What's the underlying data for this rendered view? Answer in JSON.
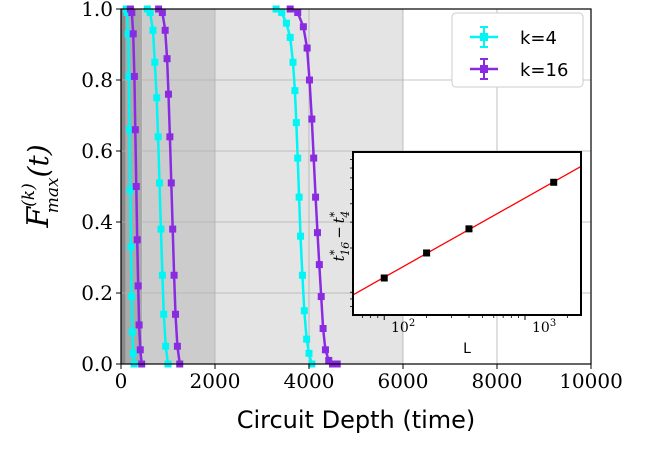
{
  "chart_data": [
    {
      "type": "line",
      "xlabel": "Circuit Depth (time)",
      "ylabel": {
        "main": "F",
        "sup": "(k)",
        "sub": "max",
        "arg": "(t)"
      },
      "xlim": [
        0,
        10000
      ],
      "ylim": [
        0,
        1.0
      ],
      "x_ticks": [
        0,
        2000,
        4000,
        6000,
        8000,
        10000
      ],
      "x_tick_labels": [
        "0",
        "2000",
        "4000",
        "6000",
        "8000",
        "10000"
      ],
      "y_ticks": [
        0.0,
        0.2,
        0.4,
        0.6,
        0.8,
        1.0
      ],
      "y_tick_labels": [
        "0.0",
        "0.2",
        "0.4",
        "0.6",
        "0.8",
        "1.0"
      ],
      "grid": true,
      "legend": "top-right",
      "shaded_regions": [
        {
          "x": [
            0,
            100
          ],
          "color": "#8a8a8a"
        },
        {
          "x": [
            100,
            450
          ],
          "color": "#aaaaaa"
        },
        {
          "x": [
            450,
            2000
          ],
          "color": "#cccccc"
        },
        {
          "x": [
            2000,
            6000
          ],
          "color": "#e4e4e4"
        }
      ],
      "series": [
        {
          "name": "k=4",
          "color": "#00f5f5",
          "group": "L100",
          "x": [
            110,
            130,
            150,
            165,
            180,
            195,
            210,
            225,
            240,
            260,
            280
          ],
          "y": [
            1.0,
            0.99,
            0.93,
            0.81,
            0.66,
            0.49,
            0.33,
            0.19,
            0.09,
            0.03,
            0.0
          ]
        },
        {
          "name": "k=4",
          "color": "#00f5f5",
          "group": "L200",
          "x": [
            560,
            620,
            680,
            720,
            760,
            790,
            820,
            850,
            880,
            910,
            950,
            1000
          ],
          "y": [
            1.0,
            0.99,
            0.94,
            0.85,
            0.75,
            0.64,
            0.51,
            0.38,
            0.25,
            0.14,
            0.05,
            0.0
          ]
        },
        {
          "name": "k=4",
          "color": "#00f5f5",
          "group": "L1600",
          "x": [
            3300,
            3420,
            3520,
            3600,
            3660,
            3700,
            3730,
            3760,
            3790,
            3820,
            3860,
            3900,
            3950,
            4000,
            4060
          ],
          "y": [
            1.0,
            0.99,
            0.96,
            0.92,
            0.85,
            0.77,
            0.68,
            0.58,
            0.47,
            0.36,
            0.25,
            0.15,
            0.07,
            0.03,
            0.0
          ]
        },
        {
          "name": "k=16",
          "color": "#8a2be2",
          "group": "L100",
          "x": [
            200,
            230,
            260,
            285,
            305,
            325,
            345,
            365,
            385,
            410,
            440
          ],
          "y": [
            1.0,
            0.99,
            0.93,
            0.81,
            0.66,
            0.5,
            0.35,
            0.22,
            0.11,
            0.04,
            0.0
          ]
        },
        {
          "name": "k=16",
          "color": "#8a2be2",
          "group": "L200",
          "x": [
            800,
            880,
            940,
            980,
            1010,
            1040,
            1070,
            1100,
            1130,
            1160,
            1200,
            1250
          ],
          "y": [
            1.0,
            0.99,
            0.94,
            0.86,
            0.76,
            0.64,
            0.51,
            0.38,
            0.25,
            0.14,
            0.05,
            0.0
          ]
        },
        {
          "name": "k=16",
          "color": "#8a2be2",
          "group": "L1600",
          "x": [
            3600,
            3760,
            3880,
            3960,
            4010,
            4060,
            4100,
            4140,
            4180,
            4220,
            4260,
            4300,
            4350,
            4420,
            4500,
            4600
          ],
          "y": [
            1.0,
            0.99,
            0.95,
            0.89,
            0.8,
            0.69,
            0.58,
            0.47,
            0.37,
            0.28,
            0.19,
            0.1,
            0.04,
            0.01,
            0.0,
            0.0
          ]
        }
      ]
    },
    {
      "type": "scatter",
      "xlabel": "L",
      "ylabel": "t*16 − t*4",
      "xscale": "log",
      "yscale": "log",
      "x_tick_labels": [
        "10²",
        "10³"
      ],
      "x": [
        100,
        200,
        400,
        1600
      ],
      "y": [
        125,
        185,
        270,
        560
      ],
      "fit_line_color": "#ff0000",
      "marker_color": "#000000"
    }
  ],
  "legend": {
    "items": [
      {
        "label": "k=4",
        "color": "#00f5f5"
      },
      {
        "label": "k=16",
        "color": "#8a2be2"
      }
    ]
  },
  "inset": {
    "xlabel": "L",
    "ylabel_main": "t",
    "ylabel_sup": "*",
    "ylabel_sub1": "16",
    "ylabel_sub2": "4",
    "ylabel_minus": "−",
    "tick_100": "10",
    "tick_100_exp": "2",
    "tick_1000": "10",
    "tick_1000_exp": "3"
  }
}
